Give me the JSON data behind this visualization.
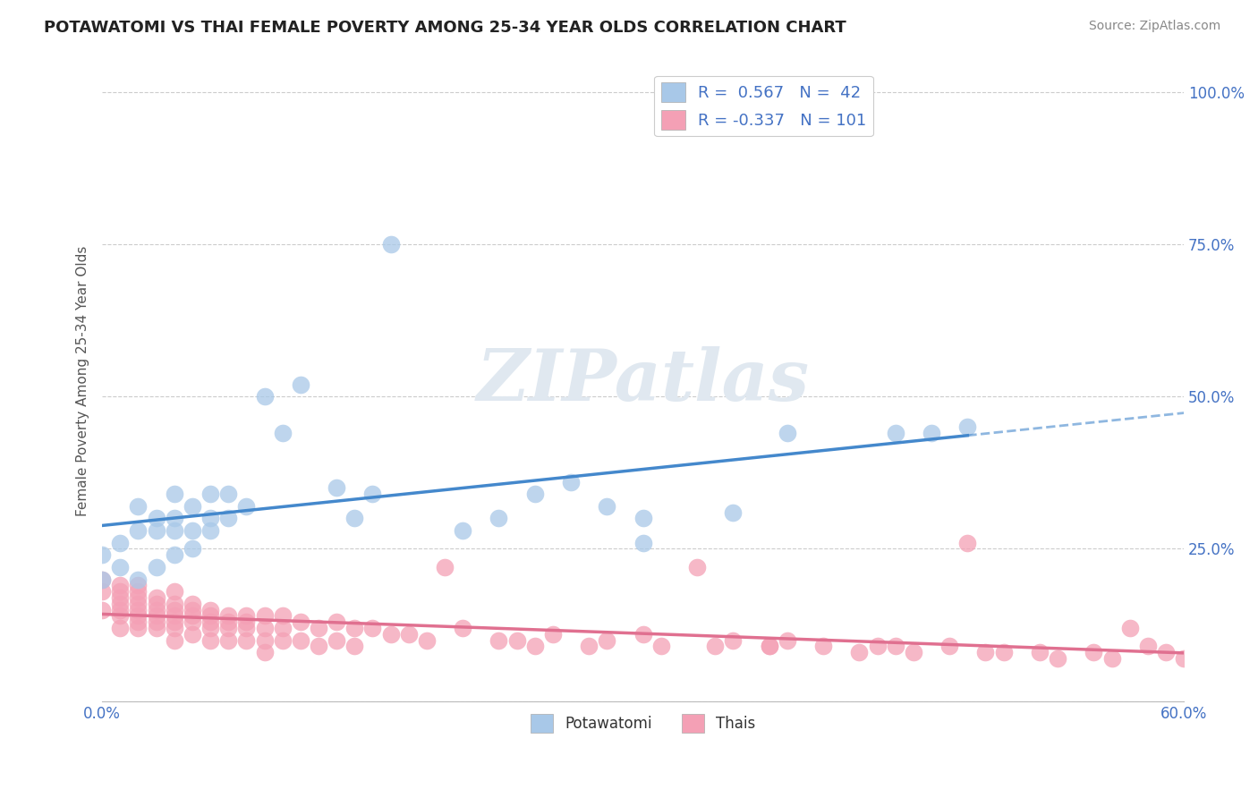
{
  "title": "POTAWATOMI VS THAI FEMALE POVERTY AMONG 25-34 YEAR OLDS CORRELATION CHART",
  "source": "Source: ZipAtlas.com",
  "ylabel": "Female Poverty Among 25-34 Year Olds",
  "xlim": [
    0.0,
    0.6
  ],
  "ylim": [
    0.0,
    1.05
  ],
  "xticks": [
    0.0,
    0.1,
    0.2,
    0.3,
    0.4,
    0.5,
    0.6
  ],
  "xticklabels": [
    "0.0%",
    "",
    "",
    "",
    "",
    "",
    "60.0%"
  ],
  "yticks": [
    0.0,
    0.25,
    0.5,
    0.75,
    1.0
  ],
  "yticklabels": [
    "",
    "25.0%",
    "50.0%",
    "75.0%",
    "100.0%"
  ],
  "blue_color": "#a8c8e8",
  "pink_color": "#f4a0b5",
  "blue_line_color": "#4488cc",
  "pink_line_color": "#e07090",
  "watermark": "ZIPatlas",
  "blue_R": 0.567,
  "blue_N": 42,
  "pink_R": -0.337,
  "pink_N": 101,
  "potawatomi_x": [
    0.0,
    0.0,
    0.01,
    0.01,
    0.02,
    0.02,
    0.02,
    0.03,
    0.03,
    0.03,
    0.04,
    0.04,
    0.04,
    0.04,
    0.05,
    0.05,
    0.05,
    0.06,
    0.06,
    0.06,
    0.07,
    0.07,
    0.08,
    0.09,
    0.1,
    0.11,
    0.13,
    0.14,
    0.15,
    0.16,
    0.2,
    0.22,
    0.24,
    0.26,
    0.28,
    0.3,
    0.3,
    0.35,
    0.38,
    0.44,
    0.46,
    0.48
  ],
  "potawatomi_y": [
    0.2,
    0.24,
    0.22,
    0.26,
    0.2,
    0.28,
    0.32,
    0.22,
    0.28,
    0.3,
    0.24,
    0.28,
    0.3,
    0.34,
    0.25,
    0.28,
    0.32,
    0.28,
    0.3,
    0.34,
    0.3,
    0.34,
    0.32,
    0.5,
    0.44,
    0.52,
    0.35,
    0.3,
    0.34,
    0.75,
    0.28,
    0.3,
    0.34,
    0.36,
    0.32,
    0.26,
    0.3,
    0.31,
    0.44,
    0.44,
    0.44,
    0.45
  ],
  "thai_x": [
    0.0,
    0.0,
    0.0,
    0.01,
    0.01,
    0.01,
    0.01,
    0.01,
    0.01,
    0.01,
    0.02,
    0.02,
    0.02,
    0.02,
    0.02,
    0.02,
    0.02,
    0.02,
    0.03,
    0.03,
    0.03,
    0.03,
    0.03,
    0.03,
    0.04,
    0.04,
    0.04,
    0.04,
    0.04,
    0.04,
    0.04,
    0.05,
    0.05,
    0.05,
    0.05,
    0.05,
    0.06,
    0.06,
    0.06,
    0.06,
    0.06,
    0.07,
    0.07,
    0.07,
    0.07,
    0.08,
    0.08,
    0.08,
    0.08,
    0.09,
    0.09,
    0.09,
    0.09,
    0.1,
    0.1,
    0.1,
    0.11,
    0.11,
    0.12,
    0.12,
    0.13,
    0.13,
    0.14,
    0.14,
    0.15,
    0.16,
    0.17,
    0.18,
    0.19,
    0.2,
    0.22,
    0.23,
    0.24,
    0.25,
    0.27,
    0.28,
    0.3,
    0.31,
    0.33,
    0.34,
    0.35,
    0.37,
    0.38,
    0.4,
    0.42,
    0.43,
    0.45,
    0.47,
    0.48,
    0.5,
    0.52,
    0.53,
    0.55,
    0.56,
    0.57,
    0.58,
    0.59,
    0.6,
    0.49,
    0.44,
    0.37
  ],
  "thai_y": [
    0.2,
    0.18,
    0.15,
    0.19,
    0.17,
    0.16,
    0.14,
    0.18,
    0.15,
    0.12,
    0.19,
    0.17,
    0.15,
    0.14,
    0.13,
    0.16,
    0.18,
    0.12,
    0.17,
    0.15,
    0.14,
    0.13,
    0.16,
    0.12,
    0.18,
    0.16,
    0.14,
    0.13,
    0.15,
    0.12,
    0.1,
    0.16,
    0.14,
    0.13,
    0.15,
    0.11,
    0.15,
    0.13,
    0.12,
    0.14,
    0.1,
    0.14,
    0.13,
    0.12,
    0.1,
    0.14,
    0.12,
    0.13,
    0.1,
    0.14,
    0.12,
    0.1,
    0.08,
    0.14,
    0.12,
    0.1,
    0.13,
    0.1,
    0.12,
    0.09,
    0.13,
    0.1,
    0.12,
    0.09,
    0.12,
    0.11,
    0.11,
    0.1,
    0.22,
    0.12,
    0.1,
    0.1,
    0.09,
    0.11,
    0.09,
    0.1,
    0.11,
    0.09,
    0.22,
    0.09,
    0.1,
    0.09,
    0.1,
    0.09,
    0.08,
    0.09,
    0.08,
    0.09,
    0.26,
    0.08,
    0.08,
    0.07,
    0.08,
    0.07,
    0.12,
    0.09,
    0.08,
    0.07,
    0.08,
    0.09,
    0.09
  ]
}
